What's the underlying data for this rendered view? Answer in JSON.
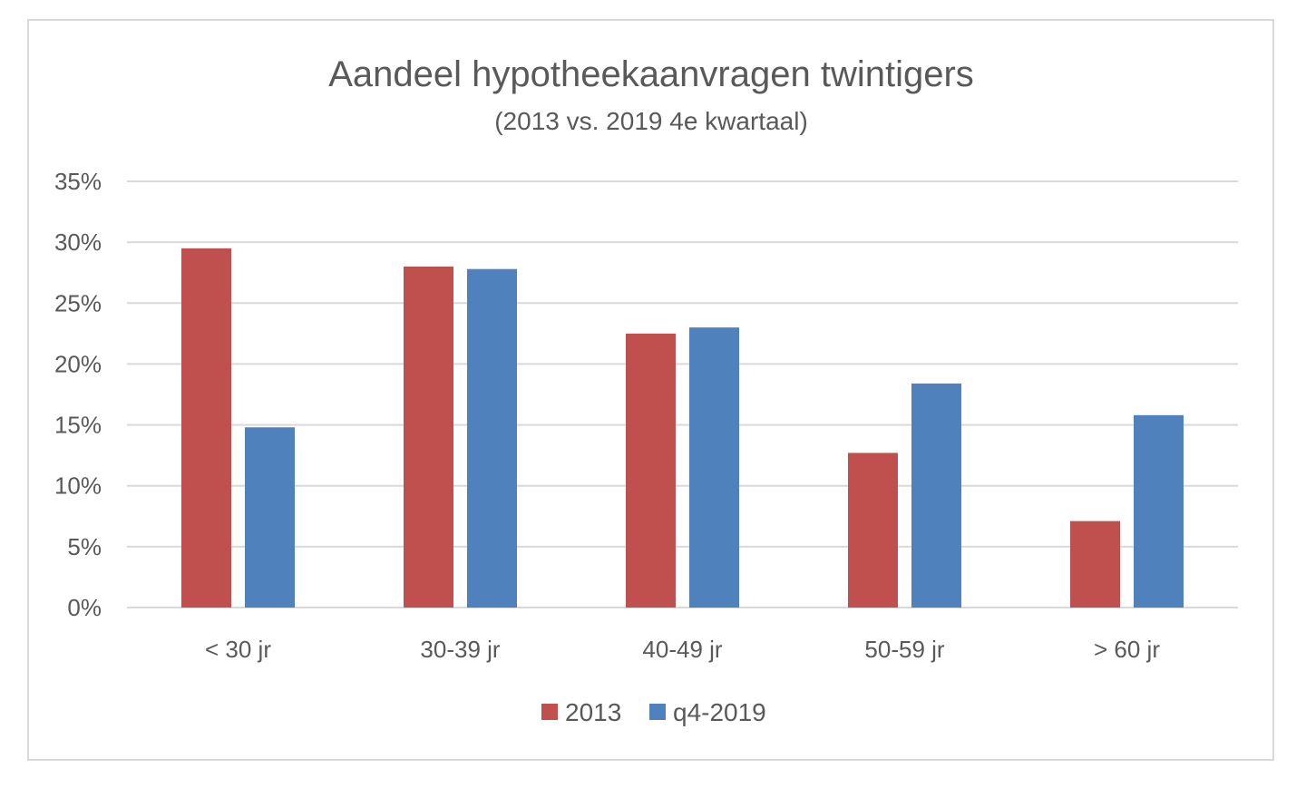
{
  "chart_data": {
    "type": "bar",
    "title": "Aandeel hypotheekaanvragen twintigers",
    "subtitle": "(2013 vs. 2019 4e kwartaal)",
    "categories": [
      "< 30 jr",
      "30-39 jr",
      "40-49 jr",
      "50-59 jr",
      "> 60 jr"
    ],
    "series": [
      {
        "name": "2013",
        "color": "#c0504d",
        "values": [
          29.5,
          28.0,
          22.5,
          12.7,
          7.1
        ]
      },
      {
        "name": "q4-2019",
        "color": "#4f81bd",
        "values": [
          14.8,
          27.8,
          23.0,
          18.4,
          15.8
        ]
      }
    ],
    "ylim": [
      0,
      35
    ],
    "yticks": [
      0,
      5,
      10,
      15,
      20,
      25,
      30,
      35
    ],
    "ytick_labels": [
      "0%",
      "5%",
      "10%",
      "15%",
      "20%",
      "25%",
      "30%",
      "35%"
    ],
    "grid": true,
    "legend_position": "bottom",
    "gridline_color": "#d9d9d9"
  }
}
